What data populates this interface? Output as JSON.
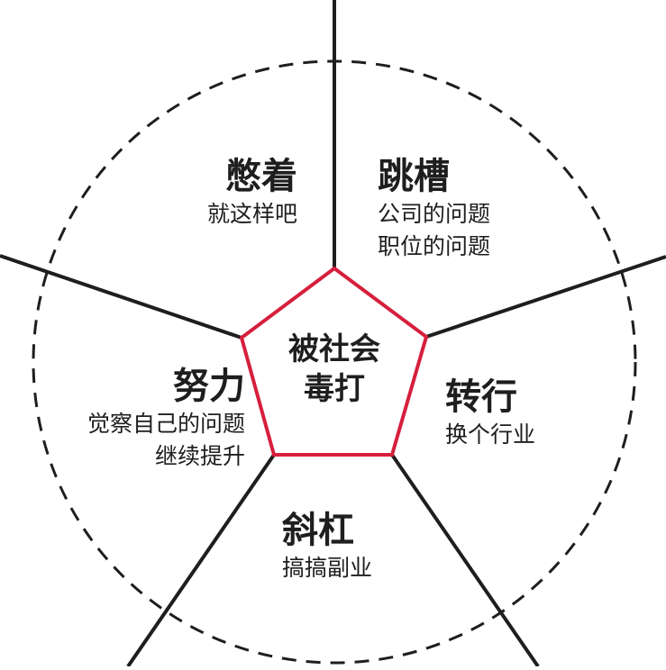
{
  "diagram": {
    "center": {
      "line1": "被社会",
      "line2": "毒打"
    },
    "segments": {
      "top_left": {
        "title": "憋着",
        "lines": [
          "就这样吧"
        ]
      },
      "top_right": {
        "title": "跳槽",
        "lines": [
          "公司的问题",
          "职位的问题"
        ]
      },
      "right": {
        "title": "转行",
        "lines": [
          "换个行业"
        ]
      },
      "bottom": {
        "title": "斜杠",
        "lines": [
          "搞搞副业"
        ]
      },
      "left": {
        "title": "努力",
        "lines": [
          "觉察自己的问题",
          "继续提升"
        ]
      }
    },
    "colors": {
      "line": "#1e1e1e",
      "pentagon": "#d61f3c",
      "text": "#1e1e1e"
    }
  }
}
